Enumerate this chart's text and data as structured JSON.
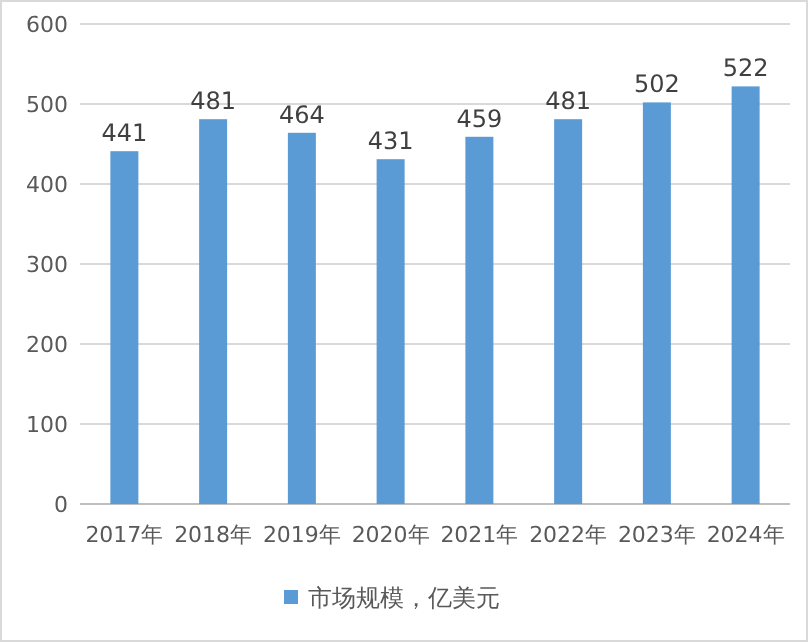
{
  "chart_data": {
    "type": "bar",
    "categories": [
      "2017年",
      "2018年",
      "2019年",
      "2020年",
      "2021年",
      "2022年",
      "2023年",
      "2024年"
    ],
    "series": [
      {
        "name": "市场规模，亿美元",
        "color": "#5b9bd5",
        "values": [
          441,
          481,
          464,
          431,
          459,
          481,
          502,
          522
        ]
      }
    ],
    "ylim": [
      0,
      600
    ],
    "yticks": [
      0,
      100,
      200,
      300,
      400,
      500,
      600
    ],
    "grid": "y",
    "data_labels": true,
    "legend": "bottom"
  }
}
